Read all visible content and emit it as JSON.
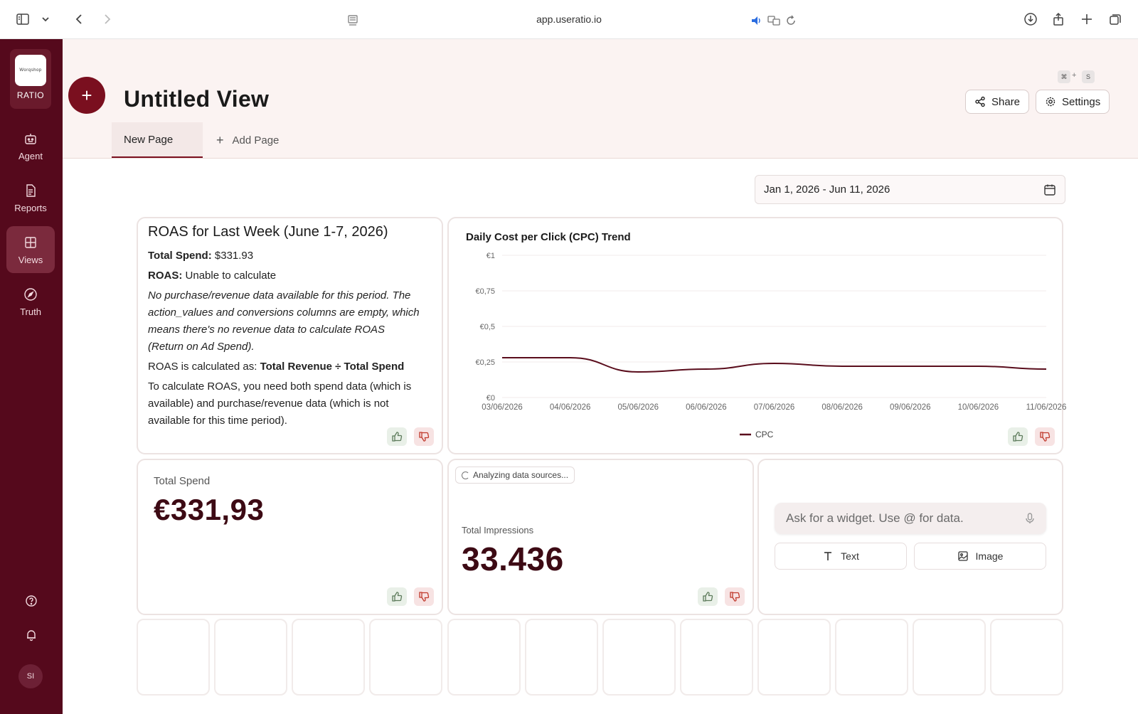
{
  "browser": {
    "url": "app.useratio.io"
  },
  "rail": {
    "logo_mark": "Worqshop",
    "brand": "RATIO",
    "items": [
      {
        "label": "Agent"
      },
      {
        "label": "Reports"
      },
      {
        "label": "Views"
      },
      {
        "label": "Truth"
      }
    ],
    "avatar_initials": "SI"
  },
  "header": {
    "title": "Untitled View",
    "shortcut_keys": [
      "⌘",
      "S"
    ],
    "shortcut_plus": "+",
    "share_label": "Share",
    "settings_label": "Settings",
    "tabs": [
      {
        "label": "New Page"
      }
    ],
    "add_page_label": "Add Page"
  },
  "date_range": "Jan 1, 2026 - Jun 11, 2026",
  "roas_card": {
    "title": "ROAS for Last Week (June 1-7, 2026)",
    "spend_label": "Total Spend:",
    "spend_value": "$331.93",
    "roas_label": "ROAS:",
    "roas_value": "Unable to calculate",
    "note_lines": [
      "No purchase/revenue data available for this period. The",
      "action_values and conversions columns are empty, which",
      "means there's no revenue data to calculate ROAS",
      "(Return on Ad Spend)."
    ],
    "formula_prefix": "ROAS is calculated as:",
    "formula": "Total Revenue ÷ Total Spend",
    "explain_lines": [
      "To calculate ROAS, you need both spend data (which is",
      "available) and purchase/revenue data (which is not",
      "available for this time period)."
    ]
  },
  "chart_data": {
    "type": "line",
    "title": "Daily Cost per Click (CPC) Trend",
    "x": [
      "03/06/2026",
      "04/06/2026",
      "05/06/2026",
      "06/06/2026",
      "07/06/2026",
      "08/06/2026",
      "09/06/2026",
      "10/06/2026",
      "11/06/2026"
    ],
    "series": [
      {
        "name": "CPC",
        "values": [
          0.28,
          0.28,
          0.18,
          0.2,
          0.24,
          0.22,
          0.22,
          0.22,
          0.2
        ],
        "color": "#5a0d1c"
      }
    ],
    "yticks": [
      "€0",
      "€0,25",
      "€0,5",
      "€0,75",
      "€1"
    ],
    "ylim": [
      0,
      1
    ],
    "grid": true,
    "legend": "bottom-center"
  },
  "kpis": {
    "spend": {
      "label": "Total Spend",
      "value": "€331,93"
    },
    "impressions": {
      "status": "Analyzing data sources...",
      "label": "Total Impressions",
      "value": "33.436"
    }
  },
  "widget_creator": {
    "placeholder": "Ask for a widget. Use @ for data.",
    "text_label": "Text",
    "image_label": "Image"
  },
  "colors": {
    "rail_bg": "#55091c",
    "accent": "#7a0f1f",
    "kpi_text": "#3d0a14",
    "header_bg": "#fbf3f2"
  }
}
